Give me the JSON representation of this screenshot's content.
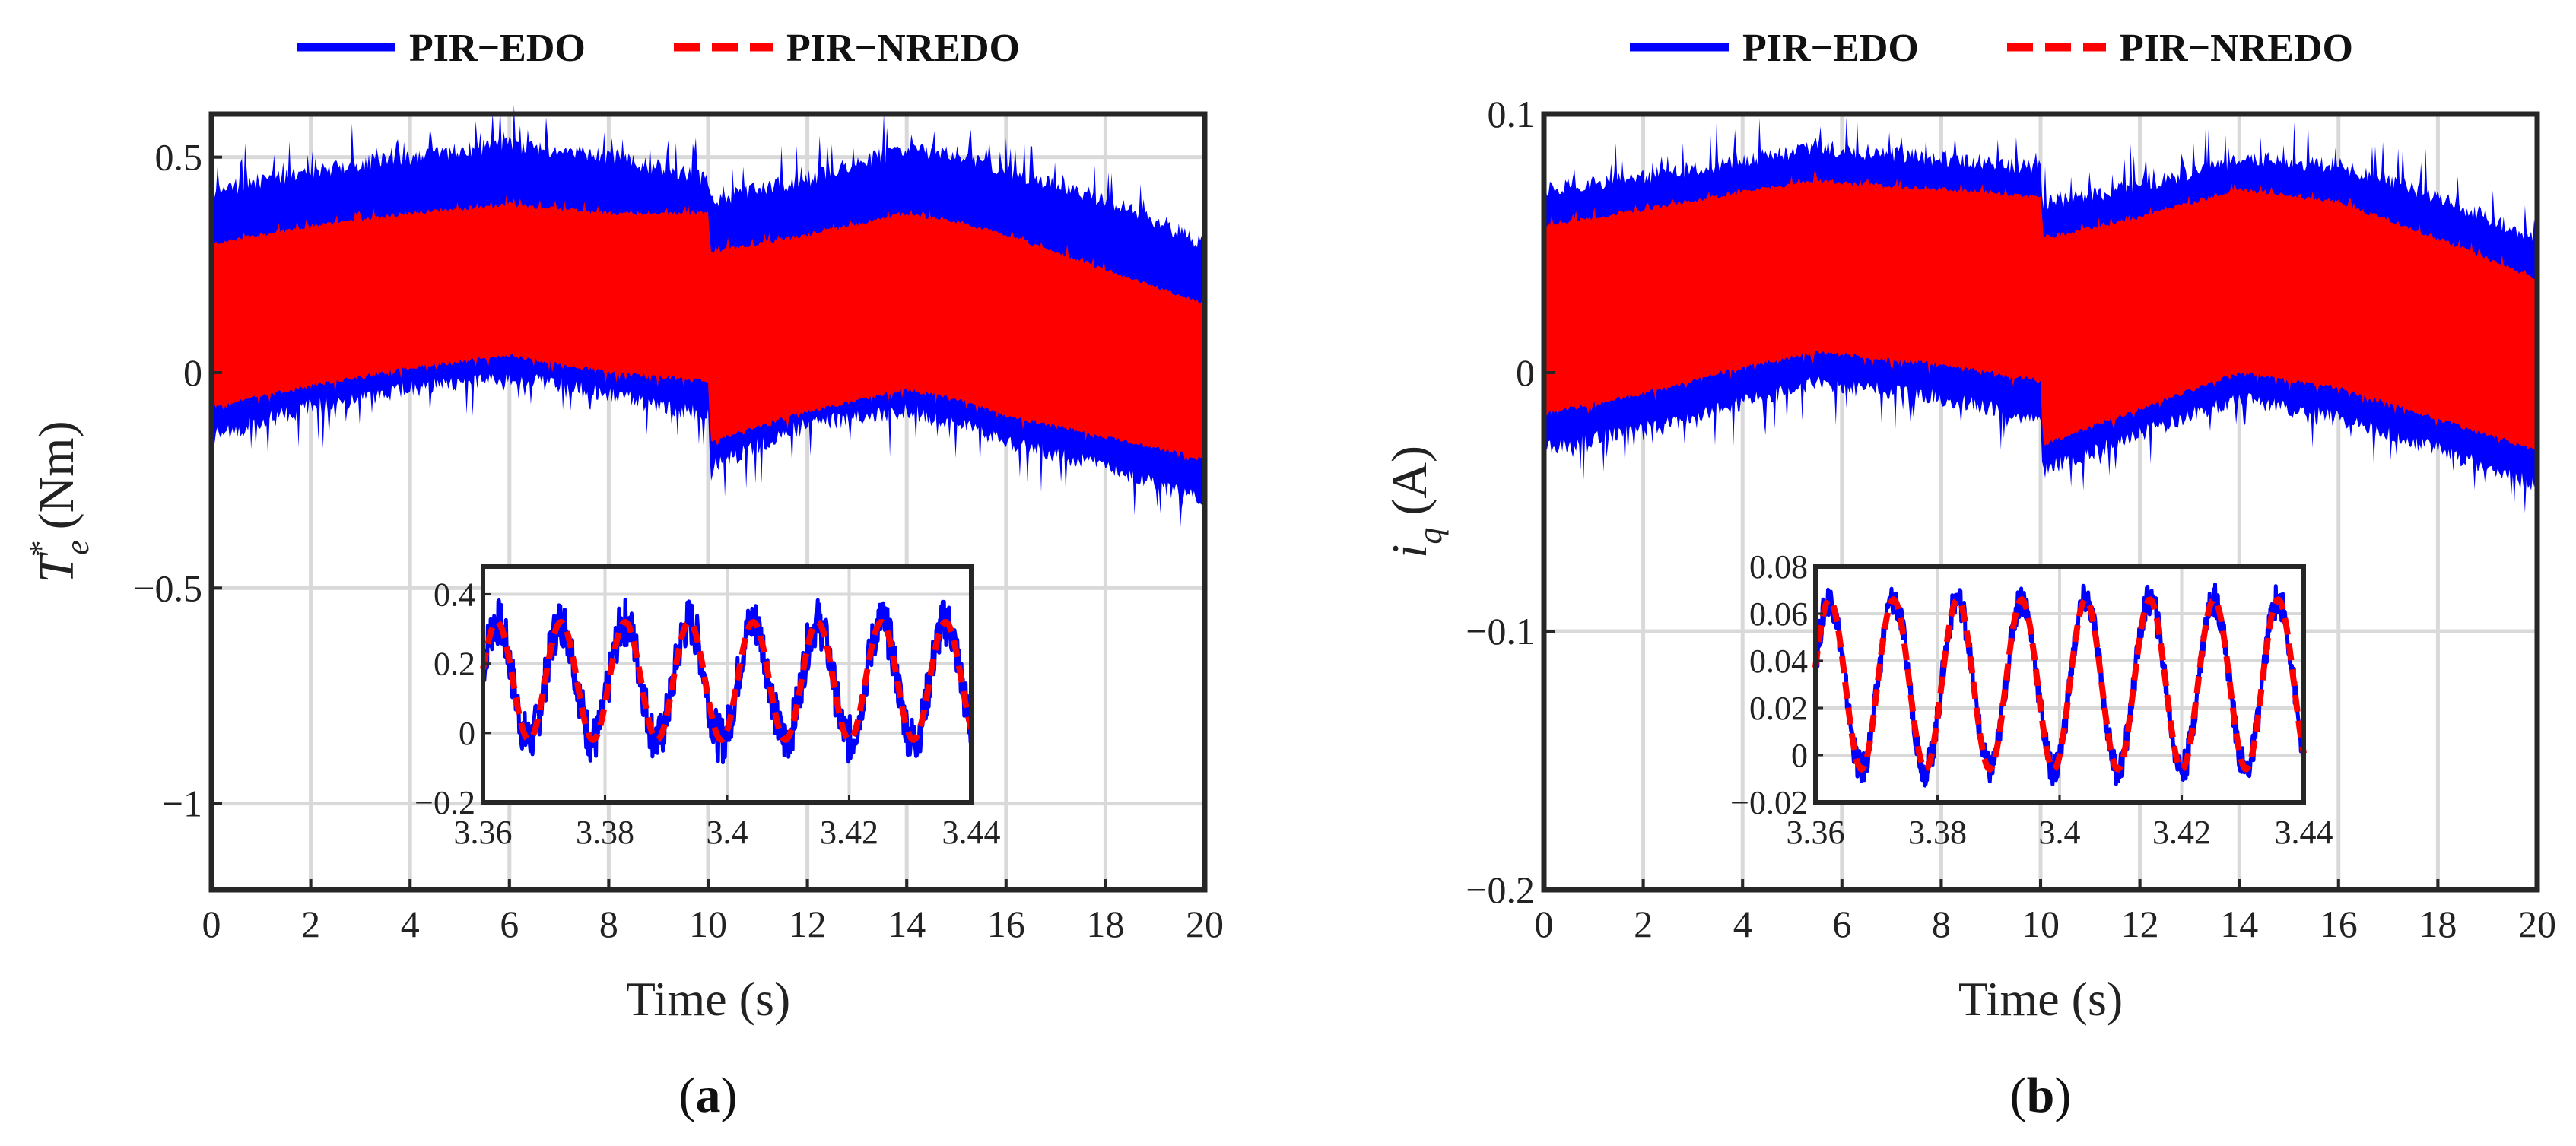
{
  "colors": {
    "series1": "#0000ff",
    "series2": "#ff0000",
    "grid": "#d9d9d9",
    "axis": "#262626"
  },
  "chart_data": [
    {
      "id": "a",
      "type": "line",
      "panel_label": "a",
      "legend": [
        "PIR−EDO",
        "PIR−NREDO"
      ],
      "legend_location": "top-center",
      "xlabel": "Time (s)",
      "ylabel_symbol": "T",
      "ylabel_subscript": "e",
      "ylabel_superscript": "*",
      "ylabel_unit": "(Nm)",
      "xlim": [
        0,
        20
      ],
      "ylim": [
        -1.2,
        0.6
      ],
      "xticks": [
        0,
        2,
        4,
        6,
        8,
        10,
        12,
        14,
        16,
        18,
        20
      ],
      "xtick_labels": [
        "0",
        "2",
        "4",
        "6",
        "8",
        "10",
        "12",
        "14",
        "16",
        "18",
        "20"
      ],
      "yticks": [
        -1,
        -0.5,
        0,
        0.5
      ],
      "ytick_labels": [
        "−1",
        "−0.5",
        "0",
        "0.5"
      ],
      "grid": true,
      "series": [
        {
          "name": "PIR−EDO",
          "style": "solid",
          "envelope_x": [
            0,
            2,
            4,
            6,
            8,
            10,
            10.05,
            12,
            14,
            15,
            16,
            18,
            20
          ],
          "envelope_upper": [
            0.42,
            0.47,
            0.5,
            0.53,
            0.5,
            0.45,
            0.4,
            0.45,
            0.52,
            0.51,
            0.47,
            0.4,
            0.3
          ],
          "envelope_lower": [
            -0.15,
            -0.08,
            -0.04,
            -0.01,
            -0.05,
            -0.1,
            -0.22,
            -0.12,
            -0.09,
            -0.12,
            -0.16,
            -0.22,
            -0.3
          ]
        },
        {
          "name": "PIR−NREDO",
          "style": "dashed",
          "envelope_x": [
            0,
            2,
            4,
            6,
            8,
            10,
            10.05,
            12,
            14,
            15,
            16,
            18,
            20
          ],
          "envelope_upper": [
            0.3,
            0.34,
            0.37,
            0.39,
            0.37,
            0.37,
            0.28,
            0.32,
            0.37,
            0.35,
            0.32,
            0.24,
            0.16
          ],
          "envelope_lower": [
            -0.08,
            -0.03,
            0.01,
            0.04,
            0.0,
            -0.02,
            -0.16,
            -0.09,
            -0.04,
            -0.06,
            -0.1,
            -0.15,
            -0.2
          ]
        }
      ],
      "inset": {
        "xlim": [
          3.36,
          3.44
        ],
        "ylim": [
          -0.2,
          0.48
        ],
        "xticks": [
          3.36,
          3.38,
          3.4,
          3.42,
          3.44
        ],
        "xtick_labels": [
          "3.36",
          "3.38",
          "3.4",
          "3.42",
          "3.44"
        ],
        "yticks": [
          -0.2,
          0,
          0.2,
          0.4
        ],
        "ytick_labels": [
          "−0.2",
          "0",
          "0.2",
          "0.4"
        ],
        "period": 0.0105,
        "phase": 0.2,
        "center": 0.15,
        "amplitude": 0.17,
        "noise": 0.07
      }
    },
    {
      "id": "b",
      "type": "line",
      "panel_label": "b",
      "legend": [
        "PIR−EDO",
        "PIR−NREDO"
      ],
      "legend_location": "top-center",
      "xlabel": "Time (s)",
      "ylabel_symbol": "i",
      "ylabel_subscript": "q",
      "ylabel_superscript": "",
      "ylabel_unit": "(A)",
      "xlim": [
        0,
        20
      ],
      "ylim": [
        -0.2,
        0.1
      ],
      "xticks": [
        0,
        2,
        4,
        6,
        8,
        10,
        12,
        14,
        16,
        18,
        20
      ],
      "xtick_labels": [
        "0",
        "2",
        "4",
        "6",
        "8",
        "10",
        "12",
        "14",
        "16",
        "18",
        "20"
      ],
      "yticks": [
        -0.2,
        -0.1,
        0,
        0.1
      ],
      "ytick_labels": [
        "−0.2",
        "−0.1",
        "0",
        "0.1"
      ],
      "grid": true,
      "series": [
        {
          "name": "PIR−EDO",
          "style": "solid",
          "envelope_x": [
            0,
            2,
            4,
            5.5,
            8,
            10,
            10.05,
            12,
            14,
            16,
            18,
            20
          ],
          "envelope_upper": [
            0.071,
            0.076,
            0.082,
            0.087,
            0.083,
            0.079,
            0.066,
            0.072,
            0.083,
            0.08,
            0.068,
            0.052
          ],
          "envelope_lower": [
            -0.03,
            -0.022,
            -0.012,
            -0.004,
            -0.01,
            -0.018,
            -0.038,
            -0.024,
            -0.01,
            -0.018,
            -0.03,
            -0.044
          ]
        },
        {
          "name": "PIR−NREDO",
          "style": "dashed",
          "envelope_x": [
            0,
            2,
            4,
            5.5,
            8,
            10,
            10.05,
            12,
            14,
            16,
            18,
            20
          ],
          "envelope_upper": [
            0.057,
            0.063,
            0.07,
            0.074,
            0.071,
            0.068,
            0.052,
            0.06,
            0.071,
            0.066,
            0.052,
            0.036
          ],
          "envelope_lower": [
            -0.016,
            -0.008,
            0.002,
            0.008,
            0.003,
            -0.003,
            -0.028,
            -0.014,
            0.0,
            -0.006,
            -0.018,
            -0.03
          ]
        }
      ],
      "inset": {
        "xlim": [
          3.36,
          3.44
        ],
        "ylim": [
          -0.02,
          0.08
        ],
        "xticks": [
          3.36,
          3.38,
          3.4,
          3.42,
          3.44
        ],
        "xtick_labels": [
          "3.36",
          "3.38",
          "3.4",
          "3.42",
          "3.44"
        ],
        "yticks": [
          -0.02,
          0,
          0.02,
          0.04,
          0.06,
          0.08
        ],
        "ytick_labels": [
          "−0.02",
          "0",
          "0.02",
          "0.04",
          "0.06",
          "0.08"
        ],
        "period": 0.0105,
        "phase": 0.2,
        "center": 0.03,
        "amplitude": 0.036,
        "noise": 0.007
      }
    }
  ]
}
